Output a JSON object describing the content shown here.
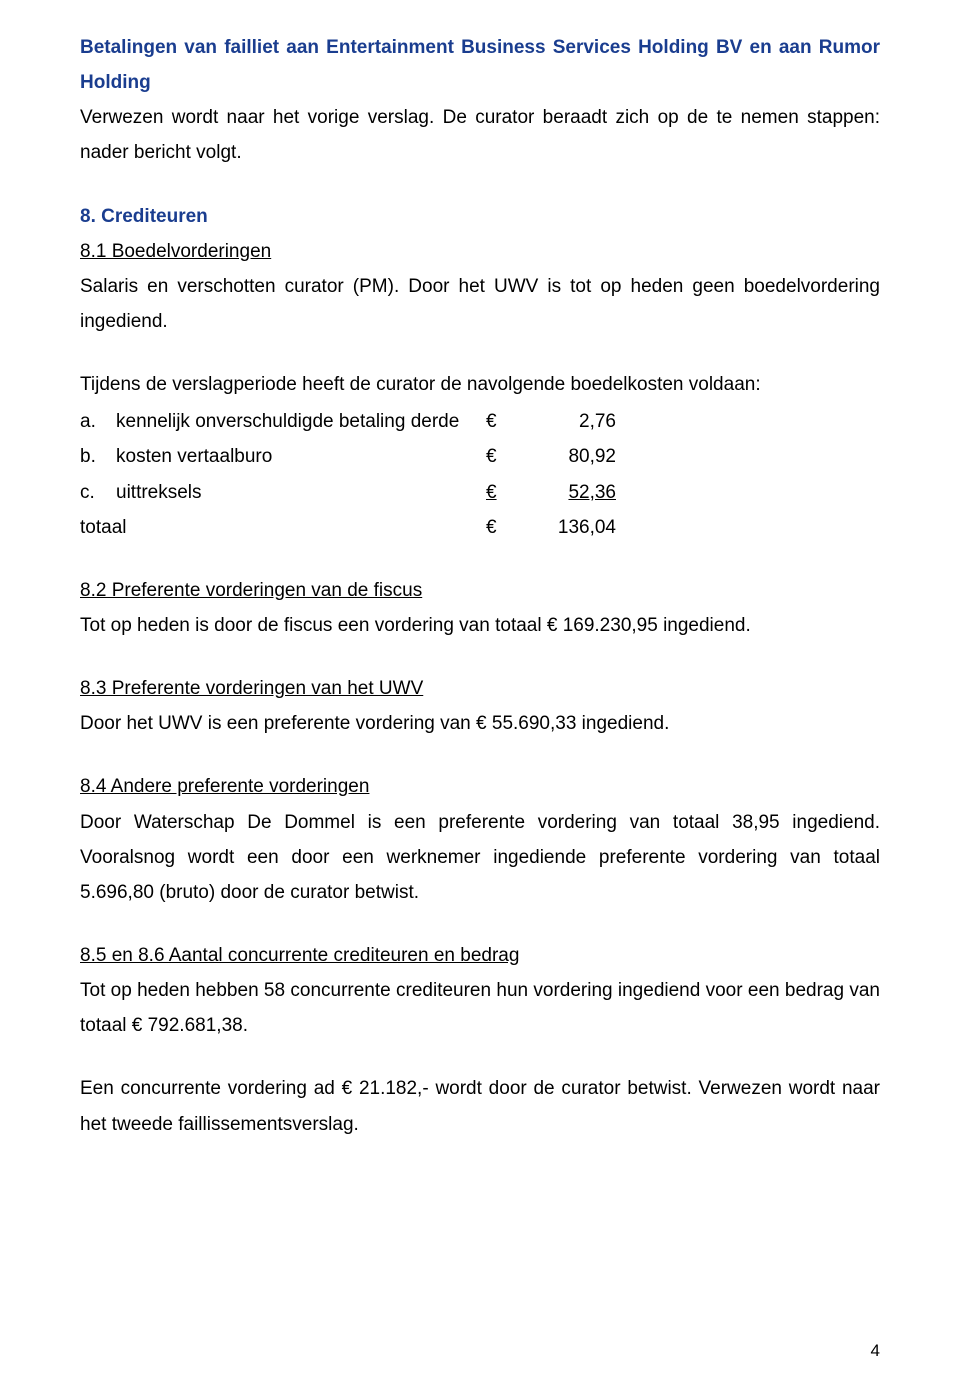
{
  "colors": {
    "heading": "#1a3d8f",
    "body": "#000000",
    "background": "#ffffff"
  },
  "typography": {
    "body_fontsize_pt": 14,
    "line_height": 1.85,
    "heading_weight": "bold",
    "font_family": "Arial"
  },
  "heading": {
    "title": "Betalingen van failliet aan Entertainment Business Services Holding BV en aan Rumor Holding"
  },
  "intro": "Verwezen wordt naar het vorige verslag. De curator beraadt zich op de te nemen stappen: nader bericht volgt.",
  "section8": {
    "title": "8. Crediteuren",
    "s81_title": "8.1  Boedelvorderingen",
    "s81_text": "Salaris en verschotten curator (PM). Door het UWV is tot op heden geen boedelvordering ingediend.",
    "s81_intro_list": "Tijdens de verslagperiode heeft de curator de navolgende boedelkosten voldaan:",
    "costs": {
      "rows": [
        {
          "label": "a.",
          "name": "kennelijk onverschuldigde betaling derde",
          "cur": "€",
          "value": "2,76"
        },
        {
          "label": "b.",
          "name": "kosten vertaalburo",
          "cur": "€",
          "value": "80,92"
        },
        {
          "label": "c.",
          "name": "uittreksels",
          "cur": "€",
          "value": "52,36",
          "underline": true
        }
      ],
      "total": {
        "label": "",
        "name": "totaal",
        "cur": "€",
        "value": "136,04"
      }
    },
    "s82_title": "8.2  Preferente vorderingen van de fiscus",
    "s82_text": "Tot op heden is door de fiscus een vordering van totaal € 169.230,95 ingediend.",
    "s83_title": "8.3  Preferente vorderingen van het UWV",
    "s83_text": "Door het UWV is een preferente vordering van € 55.690,33 ingediend.",
    "s84_title": "8.4  Andere preferente vorderingen",
    "s84_text": "Door Waterschap De Dommel is een preferente vordering van totaal 38,95 ingediend. Vooralsnog wordt een door een werknemer ingediende preferente vordering van totaal 5.696,80 (bruto) door de curator betwist.",
    "s856_title": "8.5 en 8.6  Aantal concurrente crediteuren en bedrag",
    "s856_text": "Tot op heden hebben 58 concurrente crediteuren hun vordering ingediend voor een bedrag van totaal € 792.681,38.",
    "closing": "Een concurrente vordering ad € 21.182,- wordt door de curator betwist. Verwezen wordt naar het tweede faillissementsverslag."
  },
  "page_number": "4"
}
